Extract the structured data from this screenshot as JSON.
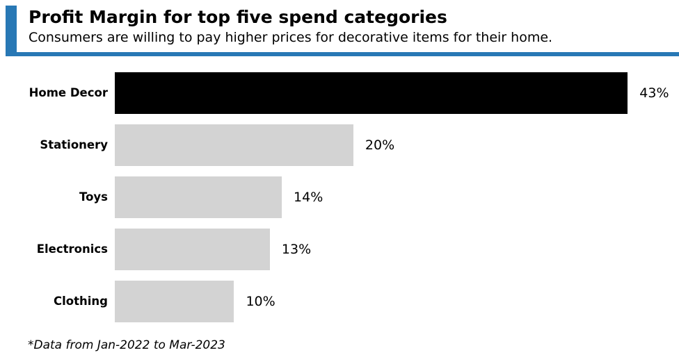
{
  "header": {
    "title": "Profit Margin for top five spend categories",
    "subtitle": "Consumers are willing to pay higher prices for decorative items for their home.",
    "accent_color": "#2878b5"
  },
  "chart_data": {
    "type": "bar",
    "orientation": "horizontal",
    "title": "Profit Margin for top five spend categories",
    "subtitle": "Consumers are willing to pay higher prices for decorative items for their home.",
    "categories": [
      "Home Decor",
      "Stationery",
      "Toys",
      "Electronics",
      "Clothing"
    ],
    "values": [
      43,
      20,
      14,
      13,
      10
    ],
    "value_labels": [
      "43%",
      "20%",
      "14%",
      "13%",
      "10%"
    ],
    "bar_colors": [
      "#000000",
      "#d3d3d3",
      "#d3d3d3",
      "#d3d3d3",
      "#d3d3d3"
    ],
    "highlighted_category": "Home Decor",
    "xlim": [
      0,
      47.3
    ],
    "grid": false,
    "legend": false,
    "xlabel": "",
    "ylabel": ""
  },
  "footnote": "*Data from Jan-2022 to Mar-2023"
}
